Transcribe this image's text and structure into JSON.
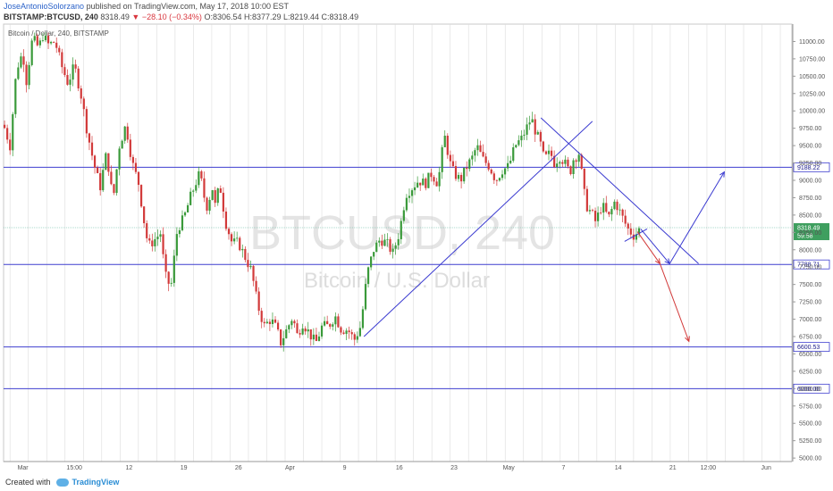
{
  "header": {
    "author": "JoseAntonioSolorzano",
    "published": "published on TradingView.com, May 17, 2018 10:00 EST",
    "symbol": "BITSTAMP:BTCUSD, 240",
    "last": "8318.49",
    "down_arrow": "▼",
    "change": "−28.10 (−0.34%)",
    "ohlc": "O:8306.54 H:8377.29 L:8219.44 C:8318.49"
  },
  "footer": {
    "created_with": "Created with",
    "brand": "TradingView"
  },
  "colors": {
    "up": "#3a9a3a",
    "down": "#d23a3a",
    "level_line": "#3f3fcf",
    "trend_line": "#3a3ad0",
    "projection_up": "#3a3ad0",
    "projection_down": "#d23a3a",
    "grid": "#dcdcdc",
    "price_line": "#58b49a"
  },
  "chart_data": {
    "type": "candlestick",
    "pane_label": "Bitcoin / Dollar, 240, BITSTAMP",
    "watermark": "BTCUSD, 240",
    "watermark_sub": "Bitcoin / U.S. Dollar",
    "ylim": [
      4950,
      11250
    ],
    "y_ticks": [
      5000,
      5250,
      5500,
      5750,
      6000,
      6250,
      6500,
      6750,
      7000,
      7250,
      7500,
      7750,
      8000,
      8250,
      8500,
      8750,
      9000,
      9250,
      9500,
      9750,
      10000,
      10250,
      10500,
      10750,
      11000
    ],
    "y_tick_labels": [
      "5000.00",
      "5250.00",
      "5500.00",
      "5750.00",
      "6000.00",
      "6250.00",
      "6500.00",
      "6750.00",
      "7000.00",
      "7250.00",
      "7500.00",
      "7750.00",
      "8000.00",
      "8250.00",
      "8500.00",
      "8750.00",
      "9000.00",
      "9250.00",
      "9500.00",
      "9750.00",
      "10000.00",
      "10250.00",
      "10500.00",
      "10750.00",
      "11000.00"
    ],
    "x_ticks": [
      {
        "label": "Mar",
        "x": 6
      },
      {
        "label": "15:00",
        "x": 22
      },
      {
        "label": "12",
        "x": 39
      },
      {
        "label": "19",
        "x": 56
      },
      {
        "label": "26",
        "x": 73
      },
      {
        "label": "Apr",
        "x": 89
      },
      {
        "label": "9",
        "x": 106
      },
      {
        "label": "16",
        "x": 123
      },
      {
        "label": "23",
        "x": 140
      },
      {
        "label": "May",
        "x": 157
      },
      {
        "label": "7",
        "x": 174
      },
      {
        "label": "14",
        "x": 191
      },
      {
        "label": "21",
        "x": 208
      },
      {
        "label": "12:00",
        "x": 219
      },
      {
        "label": "Jun",
        "x": 237
      }
    ],
    "horizontal_levels": [
      {
        "value": 9188.22,
        "label": "9188.22"
      },
      {
        "value": 7788.71,
        "label": "7788.71"
      },
      {
        "value": 6600.53,
        "label": "6600.53"
      },
      {
        "value": 6000.0,
        "label": "6000.00"
      }
    ],
    "last_price": {
      "value": 8318.49,
      "label": "8318.49",
      "sub": "59:58"
    },
    "trend_lines": [
      {
        "x1": 112,
        "y1": 6750,
        "x2": 183,
        "y2": 9850
      },
      {
        "x1": 167,
        "y1": 9900,
        "x2": 216,
        "y2": 7800
      }
    ],
    "projections": [
      {
        "kind": "up",
        "points": [
          [
            198,
            8300
          ],
          [
            207,
            7800
          ],
          [
            224,
            9120
          ]
        ]
      },
      {
        "kind": "down",
        "points": [
          [
            197,
            8260
          ],
          [
            204,
            7800
          ],
          [
            213,
            6680
          ]
        ]
      }
    ],
    "support_segment": {
      "x1": 193,
      "y1": 8120,
      "x2": 200,
      "y2": 8300
    },
    "price_path": [
      [
        0,
        9800
      ],
      [
        2,
        9500
      ],
      [
        4,
        10600
      ],
      [
        6,
        10850
      ],
      [
        7,
        10400
      ],
      [
        9,
        11050
      ],
      [
        11,
        10900
      ],
      [
        12,
        11100
      ],
      [
        14,
        10950
      ],
      [
        16,
        11000
      ],
      [
        18,
        10650
      ],
      [
        20,
        10400
      ],
      [
        22,
        10650
      ],
      [
        24,
        10250
      ],
      [
        26,
        9700
      ],
      [
        28,
        9250
      ],
      [
        30,
        8900
      ],
      [
        32,
        9400
      ],
      [
        34,
        8700
      ],
      [
        36,
        9500
      ],
      [
        38,
        9800
      ],
      [
        40,
        9250
      ],
      [
        42,
        8950
      ],
      [
        44,
        8300
      ],
      [
        45,
        8050
      ],
      [
        47,
        8150
      ],
      [
        49,
        8250
      ],
      [
        50,
        7650
      ],
      [
        52,
        7450
      ],
      [
        54,
        8300
      ],
      [
        56,
        8450
      ],
      [
        58,
        8750
      ],
      [
        60,
        9000
      ],
      [
        61,
        9100
      ],
      [
        63,
        8600
      ],
      [
        65,
        8900
      ],
      [
        66,
        8550
      ],
      [
        67,
        9000
      ],
      [
        69,
        8400
      ],
      [
        71,
        8100
      ],
      [
        73,
        8100
      ],
      [
        75,
        7900
      ],
      [
        77,
        7700
      ],
      [
        79,
        7200
      ],
      [
        81,
        6900
      ],
      [
        83,
        7000
      ],
      [
        85,
        6850
      ],
      [
        86,
        6650
      ],
      [
        88,
        6850
      ],
      [
        90,
        7050
      ],
      [
        91,
        6750
      ],
      [
        93,
        6950
      ],
      [
        95,
        6800
      ],
      [
        97,
        6650
      ],
      [
        99,
        6900
      ],
      [
        101,
        6900
      ],
      [
        103,
        7050
      ],
      [
        105,
        6850
      ],
      [
        107,
        6850
      ],
      [
        109,
        6700
      ],
      [
        111,
        6900
      ],
      [
        113,
        7650
      ],
      [
        115,
        8000
      ],
      [
        117,
        8150
      ],
      [
        119,
        8100
      ],
      [
        121,
        7950
      ],
      [
        123,
        8250
      ],
      [
        125,
        8800
      ],
      [
        127,
        8900
      ],
      [
        129,
        9000
      ],
      [
        131,
        8950
      ],
      [
        133,
        9100
      ],
      [
        135,
        8950
      ],
      [
        137,
        9650
      ],
      [
        139,
        9200
      ],
      [
        140,
        9100
      ],
      [
        142,
        9000
      ],
      [
        144,
        9200
      ],
      [
        146,
        9350
      ],
      [
        147,
        9500
      ],
      [
        149,
        9300
      ],
      [
        151,
        9200
      ],
      [
        153,
        9000
      ],
      [
        155,
        9150
      ],
      [
        157,
        9200
      ],
      [
        159,
        9500
      ],
      [
        161,
        9600
      ],
      [
        162,
        9700
      ],
      [
        164,
        9900
      ],
      [
        165,
        9750
      ],
      [
        167,
        9500
      ],
      [
        168,
        9300
      ],
      [
        170,
        9400
      ],
      [
        171,
        9250
      ],
      [
        173,
        9350
      ],
      [
        175,
        9200
      ],
      [
        176,
        9100
      ],
      [
        177,
        9300
      ],
      [
        179,
        9400
      ],
      [
        180,
        8950
      ],
      [
        181,
        8650
      ],
      [
        183,
        8500
      ],
      [
        184,
        8400
      ],
      [
        186,
        8650
      ],
      [
        188,
        8450
      ],
      [
        190,
        8700
      ],
      [
        192,
        8500
      ],
      [
        194,
        8300
      ],
      [
        196,
        8200
      ],
      [
        198,
        8320
      ]
    ]
  }
}
